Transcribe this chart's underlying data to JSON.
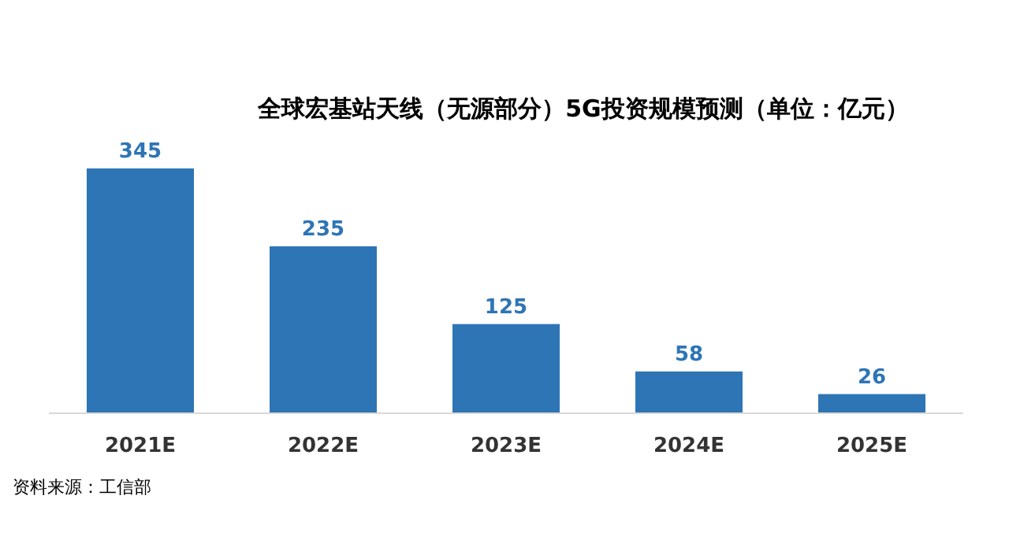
{
  "chart_data": {
    "type": "bar",
    "title": "全球宏基站天线（无源部分）5G投资规模预测（单位：亿元）",
    "categories": [
      "2021E",
      "2022E",
      "2023E",
      "2024E",
      "2025E"
    ],
    "values": [
      345,
      235,
      125,
      58,
      26
    ],
    "color": "#2e75b6",
    "data_labels": true,
    "annotations": [
      "资料来源：工信部"
    ]
  }
}
